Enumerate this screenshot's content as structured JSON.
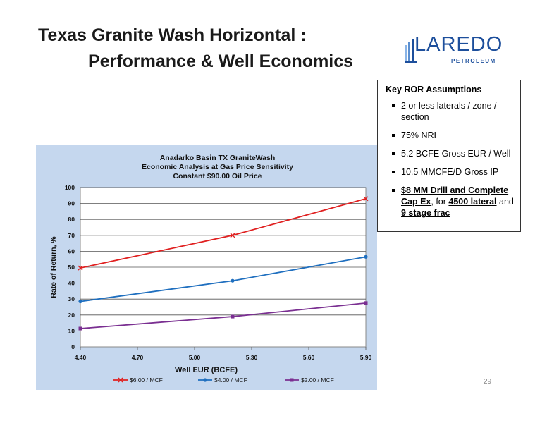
{
  "slide": {
    "title_line1": "Texas Granite Wash Horizontal :",
    "title_line2": "Performance & Well Economics",
    "page_number": "29"
  },
  "logo": {
    "name": "LAREDO",
    "sub": "PETROLEUM",
    "color": "#1d4f9c"
  },
  "assumptions": {
    "heading": "Key ROR Assumptions",
    "items": [
      "2 or less laterals / zone / section",
      "75% NRI",
      "5.2 BCFE Gross EUR / Well",
      "10.5 MMCFE/D Gross IP"
    ],
    "last_item": {
      "part1": "$8 MM Drill and Complete Cap Ex",
      "part2": ", for ",
      "part3": "4500 lateral",
      "part4": " and ",
      "part5": "9 stage frac"
    }
  },
  "chart_data": {
    "type": "line",
    "title_lines": [
      "Anadarko Basin TX GraniteWash",
      "Economic Analysis at Gas Price Sensitivity",
      "Constant $90.00 Oil Price"
    ],
    "xlabel": "Well EUR (BCFE)",
    "ylabel": "Rate of Return, %",
    "xlim": [
      4.4,
      5.9
    ],
    "ylim": [
      0,
      100
    ],
    "xticks": [
      "4.40",
      "4.70",
      "5.00",
      "5.30",
      "5.60",
      "5.90"
    ],
    "yticks": [
      0,
      10,
      20,
      30,
      40,
      50,
      60,
      70,
      80,
      90,
      100
    ],
    "grid": "horizontal",
    "legend_position": "bottom",
    "series": [
      {
        "name": "$6.00 / MCF",
        "color": "#e02020",
        "marker": "x",
        "x": [
          4.4,
          5.2,
          5.9
        ],
        "y": [
          49.5,
          70,
          93
        ]
      },
      {
        "name": "$4.00 / MCF",
        "color": "#1f6fbf",
        "marker": "dot",
        "x": [
          4.4,
          5.2,
          5.9
        ],
        "y": [
          28.5,
          41.5,
          56.5
        ]
      },
      {
        "name": "$2.00 / MCF",
        "color": "#7a2f91",
        "marker": "square",
        "x": [
          4.4,
          5.2,
          5.9
        ],
        "y": [
          11.5,
          19,
          27.5
        ]
      }
    ]
  }
}
